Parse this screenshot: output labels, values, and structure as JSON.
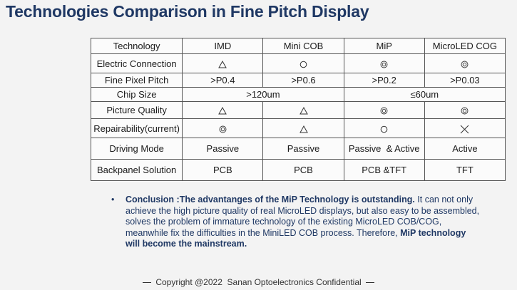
{
  "title": "Technologies Comparison in Fine Pitch Display",
  "table": {
    "headers": [
      "Technology",
      "IMD",
      "Mini COB",
      "MiP",
      "MicroLED COG"
    ],
    "rows": [
      {
        "label": "Electric Connection",
        "cells": [
          "triangle",
          "circle",
          "double-circle",
          "double-circle"
        ]
      },
      {
        "label": "Fine Pixel Pitch",
        "cells": [
          ">P0.4",
          ">P0.6",
          ">P0.2",
          ">P0.03"
        ]
      },
      {
        "label": "Chip Size",
        "merged": [
          ">120um",
          "≤60um"
        ]
      },
      {
        "label": "Picture Quality",
        "cells": [
          "triangle",
          "triangle",
          "double-circle",
          "double-circle"
        ]
      },
      {
        "label": "Repairability(current)",
        "cells": [
          "double-circle",
          "triangle",
          "circle",
          "cross"
        ]
      },
      {
        "label": "Driving Mode",
        "cells": [
          "Passive",
          "Passive",
          "Passive  & Active",
          "Active"
        ]
      },
      {
        "label": "Backpanel Solution",
        "cells": [
          "PCB",
          "PCB",
          "PCB &TFT",
          "TFT"
        ]
      }
    ]
  },
  "conclusion": {
    "bullet": "•",
    "lead_bold": "Conclusion :The advantanges of the MiP Technology is outstanding.",
    "body": " It can not only achieve the high picture quality of real MicroLED displays, but also easy to be assembled, solves the problem of immature technology of the existing MicroLED COB/COG, meanwhile fix the difficulties in the MiniLED COB process. Therefore, ",
    "end_bold": "MiP technology will become the mainstream."
  },
  "footer": {
    "text": "Copyright @2022  Sanan Optoelectronics Confidential"
  }
}
